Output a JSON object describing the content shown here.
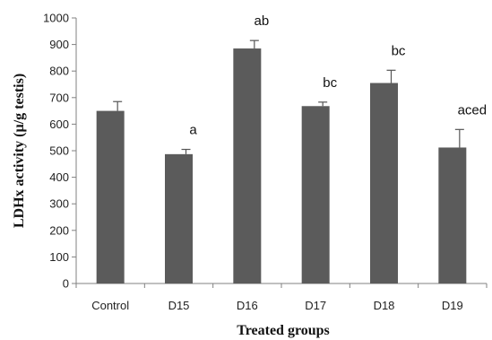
{
  "chart_data": {
    "type": "bar",
    "xlabel": "Treated groups",
    "ylabel": "LDHx activity  (µ/g testis)",
    "ylim": [
      0,
      1000
    ],
    "yticks": [
      0,
      100,
      200,
      300,
      400,
      500,
      600,
      700,
      800,
      900,
      1000
    ],
    "categories": [
      "Control",
      "D15",
      "D16",
      "D17",
      "D18",
      "D19"
    ],
    "values": [
      650,
      487,
      885,
      668,
      755,
      512
    ],
    "errors": [
      35,
      18,
      30,
      15,
      48,
      68
    ],
    "significance_labels": [
      "",
      "a",
      "ab",
      "bc",
      "bc",
      "aced"
    ],
    "bar_color": "#5b5b5b",
    "grid": false,
    "legend": "none"
  }
}
